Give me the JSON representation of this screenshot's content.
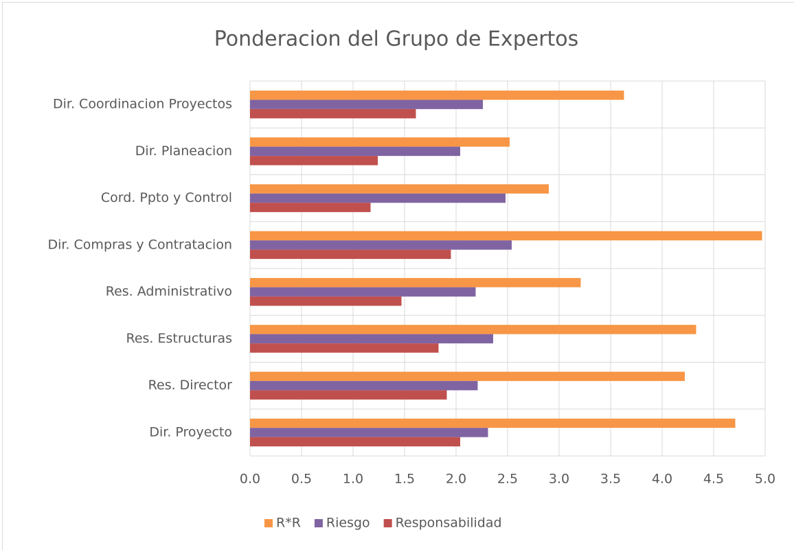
{
  "chart_data": {
    "type": "bar",
    "orientation": "horizontal",
    "title": "Ponderacion del Grupo de Expertos",
    "categories": [
      "Dir. Coordinacion Proyectos",
      "Dir. Planeacion",
      "Cord. Ppto y Control",
      "Dir. Compras y Contratacion",
      "Res. Administrativo",
      "Res. Estructuras",
      "Res. Director",
      "Dir. Proyecto"
    ],
    "series": [
      {
        "name": "R*R",
        "color": "#f79646",
        "values": [
          3.63,
          2.52,
          2.9,
          4.97,
          3.21,
          4.33,
          4.22,
          4.71
        ]
      },
      {
        "name": "Riesgo",
        "color": "#8064a2",
        "values": [
          2.26,
          2.04,
          2.48,
          2.54,
          2.19,
          2.36,
          2.21,
          2.31
        ]
      },
      {
        "name": "Responsabilidad",
        "color": "#c0504d",
        "values": [
          1.61,
          1.24,
          1.17,
          1.95,
          1.47,
          1.83,
          1.91,
          2.04
        ]
      }
    ],
    "xlim": [
      0,
      5
    ],
    "xticks": [
      {
        "value": 0,
        "label": "0.0"
      },
      0.5,
      {
        "value": 1,
        "label": "1.0"
      },
      1.5,
      {
        "value": 2,
        "label": "2.0"
      },
      2.5,
      {
        "value": 3,
        "label": "3.0"
      },
      3.5,
      {
        "value": 4,
        "label": "4.0"
      },
      4.5,
      {
        "value": 5,
        "label": "5.0"
      }
    ],
    "grid": true,
    "legend": "bottom"
  }
}
